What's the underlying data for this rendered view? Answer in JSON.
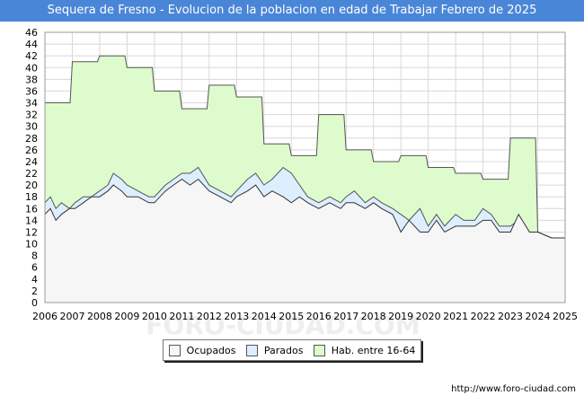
{
  "chart_data": {
    "type": "area",
    "title": "Sequera de Fresno - Evolucion de la poblacion en edad de Trabajar Febrero de 2025",
    "xlabel": "",
    "ylabel": "",
    "xlim": [
      2006,
      2025
    ],
    "ylim": [
      0,
      46
    ],
    "x_ticks": [
      "2006",
      "2007",
      "2008",
      "2009",
      "2010",
      "2011",
      "2012",
      "2013",
      "2014",
      "2015",
      "2016",
      "2017",
      "2018",
      "2019",
      "2020",
      "2021",
      "2022",
      "2023",
      "2024",
      "2025"
    ],
    "y_ticks": [
      0,
      2,
      4,
      6,
      8,
      10,
      12,
      14,
      16,
      18,
      20,
      22,
      24,
      26,
      28,
      30,
      32,
      34,
      36,
      38,
      40,
      42,
      44,
      46
    ],
    "grid": true,
    "legend_position": "bottom",
    "series": [
      {
        "name": "Hab. entre 16-64",
        "color": "#ddfbcc",
        "stroke": "#555555",
        "points": [
          [
            2006,
            34
          ],
          [
            2006.92,
            34
          ],
          [
            2007,
            41
          ],
          [
            2007.92,
            41
          ],
          [
            2008,
            42
          ],
          [
            2008.92,
            42
          ],
          [
            2009,
            40
          ],
          [
            2009.92,
            40
          ],
          [
            2010,
            36
          ],
          [
            2010.92,
            36
          ],
          [
            2011,
            33
          ],
          [
            2011.92,
            33
          ],
          [
            2012,
            37
          ],
          [
            2012.92,
            37
          ],
          [
            2013,
            35
          ],
          [
            2013.92,
            35
          ],
          [
            2014,
            27
          ],
          [
            2014.92,
            27
          ],
          [
            2015,
            25
          ],
          [
            2015.92,
            25
          ],
          [
            2016,
            32
          ],
          [
            2016.92,
            32
          ],
          [
            2017,
            26
          ],
          [
            2017.92,
            26
          ],
          [
            2018,
            24
          ],
          [
            2018.92,
            24
          ],
          [
            2019,
            25
          ],
          [
            2019.92,
            25
          ],
          [
            2020,
            23
          ],
          [
            2020.92,
            23
          ],
          [
            2021,
            22
          ],
          [
            2021.92,
            22
          ],
          [
            2022,
            21
          ],
          [
            2022.92,
            21
          ],
          [
            2023,
            28
          ],
          [
            2023.92,
            28
          ],
          [
            2024,
            12
          ],
          [
            2024.5,
            11
          ],
          [
            2025,
            11
          ]
        ]
      },
      {
        "name": "Parados",
        "color": "#ddeeff",
        "stroke": "#555555",
        "points": [
          [
            2006,
            17
          ],
          [
            2006.2,
            18
          ],
          [
            2006.4,
            16
          ],
          [
            2006.6,
            17
          ],
          [
            2006.9,
            16
          ],
          [
            2007.1,
            17
          ],
          [
            2007.4,
            18
          ],
          [
            2007.7,
            18
          ],
          [
            2008,
            19
          ],
          [
            2008.3,
            20
          ],
          [
            2008.5,
            22
          ],
          [
            2008.8,
            21
          ],
          [
            2009,
            20
          ],
          [
            2009.4,
            19
          ],
          [
            2009.8,
            18
          ],
          [
            2010,
            18
          ],
          [
            2010.4,
            20
          ],
          [
            2010.7,
            21
          ],
          [
            2011,
            22
          ],
          [
            2011.3,
            22
          ],
          [
            2011.6,
            23
          ],
          [
            2012,
            20
          ],
          [
            2012.4,
            19
          ],
          [
            2012.8,
            18
          ],
          [
            2013,
            19
          ],
          [
            2013.4,
            21
          ],
          [
            2013.7,
            22
          ],
          [
            2014,
            20
          ],
          [
            2014.3,
            21
          ],
          [
            2014.7,
            23
          ],
          [
            2015,
            22
          ],
          [
            2015.3,
            20
          ],
          [
            2015.6,
            18
          ],
          [
            2016,
            17
          ],
          [
            2016.4,
            18
          ],
          [
            2016.8,
            17
          ],
          [
            2017,
            18
          ],
          [
            2017.3,
            19
          ],
          [
            2017.7,
            17
          ],
          [
            2018,
            18
          ],
          [
            2018.3,
            17
          ],
          [
            2018.7,
            16
          ],
          [
            2019,
            15
          ],
          [
            2019.3,
            14
          ],
          [
            2019.7,
            16
          ],
          [
            2020,
            13
          ],
          [
            2020.3,
            15
          ],
          [
            2020.6,
            13
          ],
          [
            2021,
            15
          ],
          [
            2021.3,
            14
          ],
          [
            2021.7,
            14
          ],
          [
            2022,
            16
          ],
          [
            2022.3,
            15
          ],
          [
            2022.6,
            13
          ],
          [
            2023,
            13
          ],
          [
            2023.3,
            14
          ],
          [
            2023.7,
            12
          ],
          [
            2024,
            12
          ],
          [
            2024.5,
            11
          ],
          [
            2025,
            11
          ]
        ]
      },
      {
        "name": "Ocupados",
        "color": "#f6f6f6",
        "stroke": "#333333",
        "points": [
          [
            2006,
            15
          ],
          [
            2006.2,
            16
          ],
          [
            2006.4,
            14
          ],
          [
            2006.6,
            15
          ],
          [
            2006.9,
            16
          ],
          [
            2007.1,
            16
          ],
          [
            2007.4,
            17
          ],
          [
            2007.7,
            18
          ],
          [
            2008,
            18
          ],
          [
            2008.3,
            19
          ],
          [
            2008.5,
            20
          ],
          [
            2008.8,
            19
          ],
          [
            2009,
            18
          ],
          [
            2009.4,
            18
          ],
          [
            2009.8,
            17
          ],
          [
            2010,
            17
          ],
          [
            2010.4,
            19
          ],
          [
            2010.7,
            20
          ],
          [
            2011,
            21
          ],
          [
            2011.3,
            20
          ],
          [
            2011.6,
            21
          ],
          [
            2012,
            19
          ],
          [
            2012.4,
            18
          ],
          [
            2012.8,
            17
          ],
          [
            2013,
            18
          ],
          [
            2013.4,
            19
          ],
          [
            2013.7,
            20
          ],
          [
            2014,
            18
          ],
          [
            2014.3,
            19
          ],
          [
            2014.7,
            18
          ],
          [
            2015,
            17
          ],
          [
            2015.3,
            18
          ],
          [
            2015.6,
            17
          ],
          [
            2016,
            16
          ],
          [
            2016.4,
            17
          ],
          [
            2016.8,
            16
          ],
          [
            2017,
            17
          ],
          [
            2017.3,
            17
          ],
          [
            2017.7,
            16
          ],
          [
            2018,
            17
          ],
          [
            2018.3,
            16
          ],
          [
            2018.7,
            15
          ],
          [
            2019,
            12
          ],
          [
            2019.3,
            14
          ],
          [
            2019.7,
            12
          ],
          [
            2020,
            12
          ],
          [
            2020.3,
            14
          ],
          [
            2020.6,
            12
          ],
          [
            2021,
            13
          ],
          [
            2021.3,
            13
          ],
          [
            2021.7,
            13
          ],
          [
            2022,
            14
          ],
          [
            2022.3,
            14
          ],
          [
            2022.6,
            12
          ],
          [
            2023,
            12
          ],
          [
            2023.3,
            15
          ],
          [
            2023.7,
            12
          ],
          [
            2024,
            12
          ],
          [
            2024.5,
            11
          ],
          [
            2025,
            11
          ]
        ]
      }
    ],
    "legend": [
      {
        "label": "Ocupados",
        "color": "#f6f6f6"
      },
      {
        "label": "Parados",
        "color": "#ddeeff"
      },
      {
        "label": "Hab. entre 16-64",
        "color": "#ddfbcc"
      }
    ],
    "watermark": "FORO-CIUDAD.COM",
    "footer_url": "http://www.foro-ciudad.com"
  }
}
